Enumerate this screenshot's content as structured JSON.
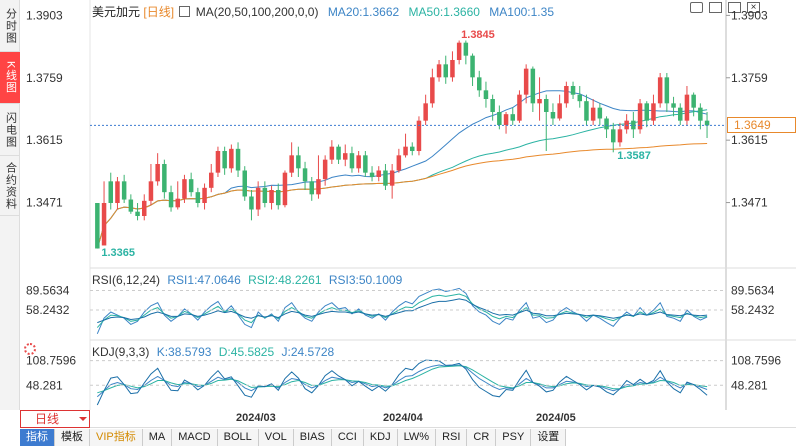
{
  "sidebar": {
    "tabs": [
      "分时图",
      "K线图",
      "闪电图",
      "合约资料"
    ],
    "active": 1
  },
  "main": {
    "title": "美元加元",
    "period": "[日线]",
    "ma_label": "MA(20,50,100,200,0,0)",
    "ma20": "MA20:1.3662",
    "ma50": "MA50:1.3660",
    "ma100": "MA100:1.35",
    "y_ticks": [
      "1.3903",
      "1.3759",
      "1.3615",
      "1.3471"
    ],
    "current_price": "1.3649",
    "high_label": "1.3845",
    "low_label": "1.3365",
    "local_low_label": "1.3587"
  },
  "rsi": {
    "title": "RSI(6,12,24)",
    "rsi1": "RSI1:47.0646",
    "rsi2": "RSI2:48.2261",
    "rsi3": "RSI3:50.1009",
    "ticks": [
      "89.5634",
      "58.2432"
    ]
  },
  "kdj": {
    "title": "KDJ(9,3,3)",
    "k": "K:38.5793",
    "d": "D:45.5825",
    "j": "J:24.5728",
    "ticks": [
      "108.7596",
      "48.2810"
    ]
  },
  "xaxis": {
    "labels": [
      "2024/03",
      "2024/04",
      "2024/05"
    ]
  },
  "period_selector": "日线",
  "indicator_tabs": [
    "指标",
    "模板",
    "VIP指标",
    "MA",
    "MACD",
    "BOLL",
    "VOL",
    "BIAS",
    "CCI",
    "KDJ",
    "LW%",
    "RSI",
    "CR",
    "PSY",
    "设置"
  ],
  "colors": {
    "up": "#e84a4a",
    "down": "#3cb371",
    "ma20": "#3d85c6",
    "ma50": "#2bb3a3",
    "ma100": "#e8892c",
    "accent": "#3d7bd0"
  },
  "chart_data": {
    "type": "candlestick",
    "ylim": [
      1.332,
      1.392
    ],
    "candles": [
      [
        1.347,
        1.3365,
        1.347,
        1.3365
      ],
      [
        1.3372,
        1.347,
        1.352,
        1.3372
      ],
      [
        1.352,
        1.347,
        1.354,
        1.3455
      ],
      [
        1.347,
        1.352,
        1.353,
        1.3455
      ],
      [
        1.352,
        1.3478,
        1.3535,
        1.347
      ],
      [
        1.3478,
        1.345,
        1.349,
        1.3445
      ],
      [
        1.345,
        1.344,
        1.347,
        1.343
      ],
      [
        1.344,
        1.3475,
        1.349,
        1.343
      ],
      [
        1.3475,
        1.352,
        1.356,
        1.3465
      ],
      [
        1.352,
        1.356,
        1.3585,
        1.351
      ],
      [
        1.356,
        1.3495,
        1.357,
        1.348
      ],
      [
        1.3495,
        1.346,
        1.351,
        1.345
      ],
      [
        1.346,
        1.348,
        1.352,
        1.3455
      ],
      [
        1.348,
        1.3525,
        1.3535,
        1.347
      ],
      [
        1.3525,
        1.3495,
        1.354,
        1.3485
      ],
      [
        1.3495,
        1.347,
        1.3505,
        1.346
      ],
      [
        1.347,
        1.3505,
        1.3515,
        1.3455
      ],
      [
        1.3505,
        1.354,
        1.356,
        1.3495
      ],
      [
        1.354,
        1.359,
        1.36,
        1.353
      ],
      [
        1.359,
        1.355,
        1.36,
        1.3535
      ],
      [
        1.355,
        1.3595,
        1.3605,
        1.354
      ],
      [
        1.3595,
        1.3545,
        1.361,
        1.353
      ],
      [
        1.3545,
        1.3485,
        1.3555,
        1.3475
      ],
      [
        1.3485,
        1.3455,
        1.35,
        1.343
      ],
      [
        1.3455,
        1.3505,
        1.352,
        1.344
      ],
      [
        1.3505,
        1.347,
        1.352,
        1.346
      ],
      [
        1.347,
        1.35,
        1.351,
        1.3455
      ],
      [
        1.35,
        1.3465,
        1.3515,
        1.3455
      ],
      [
        1.3465,
        1.354,
        1.3545,
        1.346
      ],
      [
        1.354,
        1.358,
        1.361,
        1.353
      ],
      [
        1.358,
        1.355,
        1.36,
        1.353
      ],
      [
        1.355,
        1.352,
        1.3565,
        1.35
      ],
      [
        1.352,
        1.349,
        1.353,
        1.3475
      ],
      [
        1.349,
        1.3525,
        1.358,
        1.348
      ],
      [
        1.3525,
        1.357,
        1.358,
        1.351
      ],
      [
        1.357,
        1.36,
        1.3615,
        1.356
      ],
      [
        1.36,
        1.357,
        1.3605,
        1.356
      ],
      [
        1.357,
        1.3585,
        1.3605,
        1.3555
      ],
      [
        1.3585,
        1.355,
        1.36,
        1.354
      ],
      [
        1.355,
        1.358,
        1.359,
        1.354
      ],
      [
        1.358,
        1.354,
        1.359,
        1.353
      ],
      [
        1.354,
        1.353,
        1.3555,
        1.352
      ],
      [
        1.353,
        1.3545,
        1.3555,
        1.352
      ],
      [
        1.3545,
        1.351,
        1.356,
        1.35
      ],
      [
        1.351,
        1.3545,
        1.356,
        1.348
      ],
      [
        1.3545,
        1.358,
        1.3595,
        1.354
      ],
      [
        1.358,
        1.36,
        1.363,
        1.3575
      ],
      [
        1.36,
        1.359,
        1.361,
        1.358
      ],
      [
        1.359,
        1.366,
        1.367,
        1.358
      ],
      [
        1.366,
        1.37,
        1.372,
        1.365
      ],
      [
        1.37,
        1.376,
        1.378,
        1.369
      ],
      [
        1.376,
        1.379,
        1.38,
        1.375
      ],
      [
        1.379,
        1.376,
        1.381,
        1.3745
      ],
      [
        1.376,
        1.38,
        1.382,
        1.375
      ],
      [
        1.38,
        1.384,
        1.3845,
        1.379
      ],
      [
        1.384,
        1.381,
        1.3845,
        1.379
      ],
      [
        1.381,
        1.376,
        1.3815,
        1.374
      ],
      [
        1.376,
        1.373,
        1.3775,
        1.3715
      ],
      [
        1.373,
        1.371,
        1.375,
        1.369
      ],
      [
        1.371,
        1.368,
        1.372,
        1.366
      ],
      [
        1.368,
        1.365,
        1.3695,
        1.364
      ],
      [
        1.365,
        1.3675,
        1.368,
        1.363
      ],
      [
        1.3675,
        1.366,
        1.369,
        1.365
      ],
      [
        1.366,
        1.372,
        1.373,
        1.3655
      ],
      [
        1.372,
        1.378,
        1.379,
        1.37
      ],
      [
        1.378,
        1.37,
        1.3785,
        1.368
      ],
      [
        1.37,
        1.371,
        1.376,
        1.366
      ],
      [
        1.371,
        1.368,
        1.372,
        1.359
      ],
      [
        1.368,
        1.3665,
        1.37,
        1.365
      ],
      [
        1.3665,
        1.37,
        1.372,
        1.366
      ],
      [
        1.37,
        1.374,
        1.375,
        1.369
      ],
      [
        1.374,
        1.372,
        1.375,
        1.371
      ],
      [
        1.372,
        1.3705,
        1.374,
        1.369
      ],
      [
        1.3705,
        1.366,
        1.372,
        1.365
      ],
      [
        1.366,
        1.369,
        1.371,
        1.365
      ],
      [
        1.369,
        1.3665,
        1.37,
        1.365
      ],
      [
        1.3665,
        1.364,
        1.367,
        1.362
      ],
      [
        1.364,
        1.361,
        1.3655,
        1.3587
      ],
      [
        1.361,
        1.364,
        1.3655,
        1.36
      ],
      [
        1.364,
        1.366,
        1.3675,
        1.363
      ],
      [
        1.366,
        1.364,
        1.368,
        1.362
      ],
      [
        1.364,
        1.37,
        1.371,
        1.363
      ],
      [
        1.37,
        1.366,
        1.3705,
        1.3645
      ],
      [
        1.366,
        1.37,
        1.372,
        1.365
      ],
      [
        1.37,
        1.376,
        1.377,
        1.369
      ],
      [
        1.376,
        1.37,
        1.377,
        1.368
      ],
      [
        1.37,
        1.369,
        1.3715,
        1.367
      ],
      [
        1.369,
        1.366,
        1.37,
        1.365
      ],
      [
        1.366,
        1.372,
        1.374,
        1.365
      ],
      [
        1.372,
        1.369,
        1.3725,
        1.367
      ],
      [
        1.369,
        1.366,
        1.37,
        1.364
      ],
      [
        1.366,
        1.3649,
        1.368,
        1.362
      ]
    ],
    "rsi": {
      "series": [
        {
          "name": "RSI1",
          "values": [
            20,
            45,
            55,
            50,
            45,
            35,
            40,
            55,
            65,
            70,
            50,
            40,
            48,
            60,
            52,
            42,
            55,
            65,
            72,
            55,
            65,
            50,
            35,
            30,
            55,
            45,
            52,
            40,
            62,
            70,
            55,
            45,
            40,
            55,
            65,
            70,
            60,
            62,
            52,
            60,
            50,
            45,
            52,
            42,
            55,
            65,
            72,
            68,
            80,
            85,
            90,
            92,
            88,
            90,
            93,
            85,
            65,
            55,
            50,
            40,
            35,
            45,
            42,
            58,
            70,
            45,
            48,
            38,
            42,
            55,
            62,
            55,
            50,
            40,
            50,
            45,
            38,
            32,
            45,
            55,
            48,
            62,
            50,
            58,
            70,
            48,
            45,
            40,
            58,
            48,
            42,
            47
          ]
        },
        {
          "name": "RSI2",
          "values": [
            30,
            42,
            50,
            49,
            46,
            40,
            42,
            50,
            58,
            62,
            52,
            45,
            48,
            56,
            52,
            46,
            52,
            58,
            64,
            55,
            60,
            52,
            42,
            38,
            50,
            46,
            50,
            44,
            56,
            62,
            56,
            48,
            45,
            52,
            58,
            62,
            58,
            58,
            54,
            57,
            52,
            48,
            51,
            46,
            52,
            58,
            63,
            62,
            70,
            75,
            80,
            82,
            80,
            82,
            84,
            80,
            68,
            60,
            55,
            48,
            44,
            48,
            46,
            55,
            62,
            50,
            50,
            45,
            46,
            52,
            56,
            53,
            51,
            46,
            50,
            48,
            44,
            41,
            46,
            51,
            48,
            55,
            50,
            54,
            60,
            50,
            48,
            46,
            53,
            49,
            46,
            48
          ]
        },
        {
          "name": "RSI3",
          "values": [
            38,
            42,
            46,
            47,
            46,
            43,
            44,
            47,
            52,
            55,
            52,
            48,
            48,
            52,
            51,
            48,
            50,
            53,
            57,
            54,
            56,
            52,
            47,
            45,
            49,
            47,
            49,
            46,
            52,
            56,
            54,
            50,
            48,
            51,
            54,
            56,
            55,
            55,
            53,
            55,
            52,
            50,
            51,
            48,
            51,
            54,
            57,
            57,
            62,
            66,
            70,
            72,
            72,
            74,
            76,
            74,
            67,
            62,
            58,
            53,
            50,
            51,
            50,
            54,
            58,
            53,
            52,
            49,
            49,
            51,
            53,
            52,
            51,
            49,
            50,
            49,
            47,
            45,
            47,
            50,
            49,
            52,
            50,
            52,
            55,
            51,
            50,
            49,
            52,
            50,
            49,
            50
          ]
        }
      ],
      "ticks": [
        89.5634,
        58.2432
      ]
    },
    "kdj": {
      "series": [
        {
          "name": "K",
          "values": [
            20,
            35,
            50,
            55,
            50,
            40,
            38,
            48,
            60,
            70,
            60,
            48,
            45,
            55,
            52,
            45,
            48,
            58,
            68,
            62,
            65,
            55,
            42,
            35,
            45,
            45,
            48,
            42,
            55,
            65,
            62,
            50,
            42,
            48,
            60,
            68,
            65,
            62,
            55,
            58,
            52,
            45,
            48,
            42,
            48,
            60,
            70,
            72,
            82,
            90,
            95,
            98,
            95,
            96,
            98,
            92,
            78,
            65,
            55,
            45,
            38,
            42,
            40,
            52,
            65,
            55,
            50,
            42,
            42,
            50,
            58,
            56,
            52,
            45,
            48,
            46,
            40,
            35,
            40,
            50,
            48,
            55,
            52,
            56,
            68,
            58,
            50,
            42,
            52,
            50,
            44,
            38
          ]
        },
        {
          "name": "D",
          "values": [
            30,
            35,
            42,
            48,
            50,
            46,
            42,
            45,
            52,
            60,
            60,
            54,
            50,
            52,
            52,
            49,
            48,
            53,
            60,
            61,
            63,
            59,
            51,
            43,
            44,
            45,
            46,
            45,
            50,
            57,
            60,
            55,
            48,
            48,
            54,
            60,
            62,
            62,
            59,
            58,
            55,
            50,
            49,
            46,
            47,
            53,
            60,
            65,
            72,
            80,
            88,
            93,
            94,
            95,
            96,
            94,
            86,
            76,
            66,
            56,
            47,
            44,
            42,
            47,
            55,
            55,
            52,
            47,
            45,
            47,
            52,
            54,
            53,
            49,
            48,
            47,
            44,
            40,
            40,
            45,
            47,
            51,
            52,
            54,
            60,
            59,
            55,
            48,
            50,
            50,
            47,
            45
          ]
        },
        {
          "name": "J",
          "values": [
            0,
            35,
            66,
            69,
            50,
            28,
            30,
            54,
            76,
            90,
            60,
            36,
            35,
            61,
            52,
            37,
            48,
            68,
            84,
            64,
            69,
            47,
            24,
            19,
            47,
            45,
            52,
            36,
            65,
            81,
            66,
            40,
            30,
            48,
            72,
            84,
            71,
            62,
            47,
            58,
            46,
            35,
            46,
            34,
            50,
            74,
            90,
            86,
            102,
            110,
            109,
            108,
            97,
            98,
            102,
            88,
            62,
            43,
            33,
            23,
            20,
            38,
            36,
            62,
            85,
            55,
            46,
            32,
            36,
            56,
            70,
            60,
            50,
            37,
            48,
            44,
            32,
            25,
            40,
            60,
            50,
            63,
            52,
            60,
            84,
            56,
            40,
            30,
            56,
            50,
            38,
            24
          ]
        }
      ],
      "ticks": [
        108.7596,
        48.281
      ]
    }
  }
}
